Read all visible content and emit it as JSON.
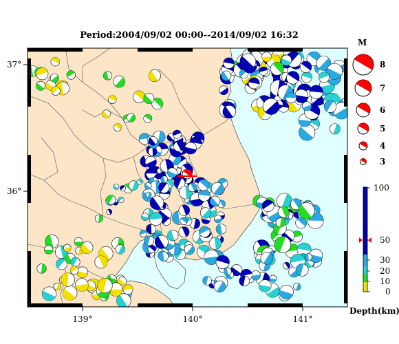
{
  "header": {
    "period": "Period:2004/09/02 00:00--2014/09/02 16:32"
  },
  "colors": {
    "land": "#fde5c8",
    "sea": "#e0ffff",
    "quake_deep_blue": "#0000b4",
    "quake_light_blue": "#2aa8e0",
    "quake_cyan": "#2ad0d0",
    "quake_green": "#22dd22",
    "quake_yellow": "#f2e000",
    "mainshock_red": "#ff0000"
  },
  "map": {
    "lon_labels": [
      "139°",
      "140°",
      "141°"
    ],
    "lat_labels": [
      "37°",
      "36°"
    ]
  },
  "magnitude_legend": {
    "title": "M",
    "items": [
      "8",
      "7",
      "6",
      "5",
      "4",
      "3"
    ]
  },
  "depth_legend": {
    "ticks": [
      "100",
      "50",
      "30",
      "20",
      "10",
      "0"
    ],
    "axis_label": "Depth(km)",
    "marker_value": "50"
  }
}
